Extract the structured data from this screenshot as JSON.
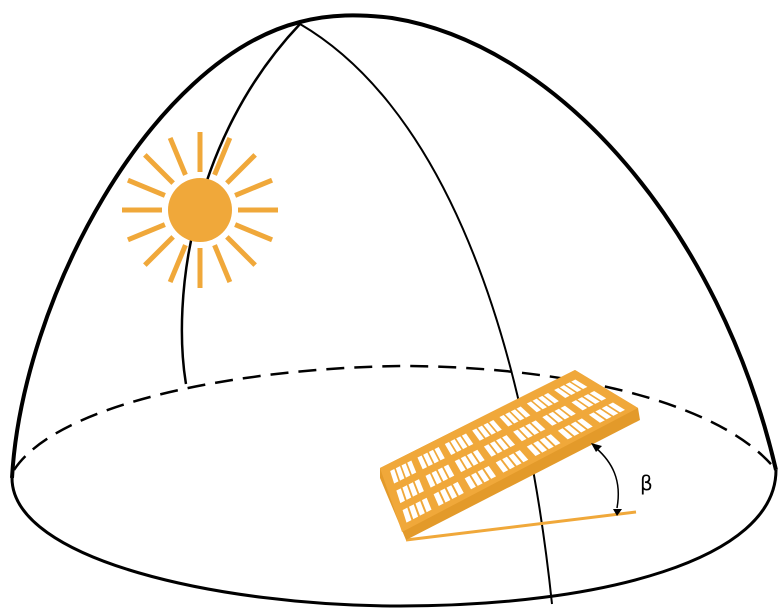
{
  "diagram": {
    "tilt_angle_label": "β",
    "colors": {
      "outline": "#000000",
      "sun": "#F0A83A",
      "panel": "#F0A83A",
      "panel_edge": "#D48A1C",
      "background": "#FFFFFF"
    },
    "icons": {
      "sun": "sun-icon",
      "panel": "solar-panel-icon",
      "angle_arrow": "double-headed-arc-arrow-icon"
    }
  }
}
